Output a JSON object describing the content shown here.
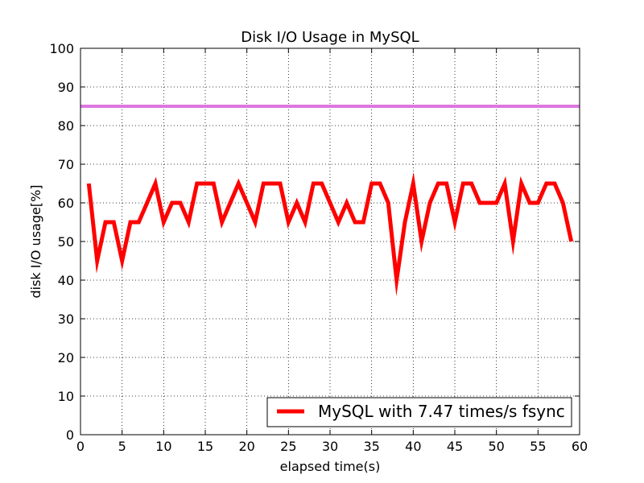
{
  "chart_data": {
    "type": "line",
    "title": "Disk I/O Usage in MySQL",
    "xlabel": "elapsed time(s)",
    "ylabel": "disk I/O usage[%]",
    "xlim": [
      0,
      60
    ],
    "ylim": [
      0,
      100
    ],
    "xticks": [
      0,
      5,
      10,
      15,
      20,
      25,
      30,
      35,
      40,
      45,
      50,
      55,
      60
    ],
    "yticks": [
      0,
      10,
      20,
      30,
      40,
      50,
      60,
      70,
      80,
      90,
      100
    ],
    "grid": true,
    "legend_position": "lower-right",
    "reference_line": {
      "y": 85,
      "color": "#dd77dd"
    },
    "series": [
      {
        "name": "MySQL with 7.47 times/s fsync",
        "color": "#ff0000",
        "x": [
          1,
          2,
          3,
          4,
          5,
          6,
          7,
          8,
          9,
          10,
          11,
          12,
          13,
          14,
          15,
          16,
          17,
          18,
          19,
          20,
          21,
          22,
          23,
          24,
          25,
          26,
          27,
          28,
          29,
          30,
          31,
          32,
          33,
          34,
          35,
          36,
          37,
          38,
          39,
          40,
          41,
          42,
          43,
          44,
          45,
          46,
          47,
          48,
          49,
          50,
          51,
          52,
          53,
          54,
          55,
          56,
          57,
          58,
          59
        ],
        "values": [
          65,
          45,
          55,
          55,
          45,
          55,
          55,
          60,
          65,
          55,
          60,
          60,
          55,
          65,
          65,
          65,
          55,
          60,
          65,
          60,
          55,
          65,
          65,
          65,
          55,
          60,
          55,
          65,
          65,
          60,
          55,
          60,
          55,
          55,
          65,
          65,
          60,
          40,
          55,
          65,
          50,
          60,
          65,
          65,
          55,
          65,
          65,
          60,
          60,
          60,
          65,
          50,
          65,
          60,
          60,
          65,
          65,
          60,
          50
        ]
      }
    ]
  }
}
